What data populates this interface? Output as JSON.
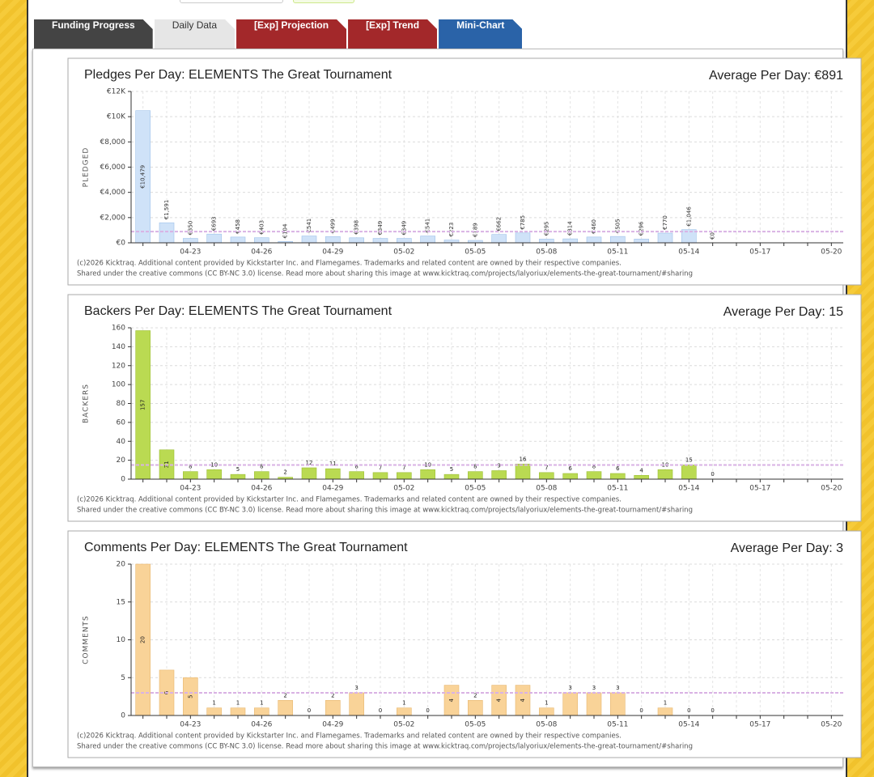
{
  "tabs": [
    "Funding Progress",
    "Daily Data",
    "[Exp] Projection",
    "[Exp] Trend",
    "Mini-Chart"
  ],
  "chart_data": [
    {
      "type": "bar",
      "title": "Pledges Per Day: ELEMENTS The Great Tournament",
      "average": {
        "value": 891,
        "label": "Average Per Day: €891"
      },
      "ylabel": "PLEDGED",
      "color": "#cfe2f8",
      "edge": "#9fc2ea",
      "categories": [
        null,
        null,
        "04-23",
        null,
        null,
        "04-26",
        null,
        null,
        "04-29",
        null,
        null,
        "05-02",
        null,
        null,
        "05-05",
        null,
        null,
        "05-08",
        null,
        null,
        "05-11",
        null,
        null,
        "05-14",
        null,
        null,
        "05-17",
        null,
        null,
        "05-20"
      ],
      "values": [
        10479,
        1591,
        350,
        693,
        458,
        403,
        104,
        541,
        499,
        398,
        349,
        349,
        541,
        223,
        189,
        662,
        785,
        295,
        314,
        460,
        505,
        296,
        770,
        1046,
        0,
        null,
        null,
        null,
        null,
        null
      ],
      "value_labels": [
        "€10,479",
        "€1,591",
        "€350",
        "€693",
        "€458",
        "€403",
        "€104",
        "€541",
        "€499",
        "€398",
        "€349",
        "€349",
        "€541",
        "€223",
        "€189",
        "€662",
        "€785",
        "€295",
        "€314",
        "€460",
        "€505",
        "€296",
        "€770",
        "€1,046",
        "€0",
        null,
        null,
        null,
        null,
        null
      ],
      "ylim": [
        0,
        12000
      ],
      "yticks": [
        {
          "value": 0,
          "label": "€0"
        },
        {
          "value": 2000,
          "label": "€2,000"
        },
        {
          "value": 4000,
          "label": "€4,000"
        },
        {
          "value": 6000,
          "label": "€6,000"
        },
        {
          "value": 8000,
          "label": "€8,000"
        },
        {
          "value": 10000,
          "label": "€10K"
        },
        {
          "value": 12000,
          "label": "€12K"
        }
      ],
      "footer": [
        "(c)2026 Kicktraq. Additional content provided by Kickstarter Inc. and Flamegames. Trademarks and related content are owned by their respective companies.",
        "Shared under the creative commons (CC BY-NC 3.0) license. Read more about sharing this image at www.kicktraq.com/projects/lalyoriux/elements-the-great-tournament/#sharing"
      ]
    },
    {
      "type": "bar",
      "title": "Backers Per Day: ELEMENTS The Great Tournament",
      "average": {
        "value": 15,
        "label": "Average Per Day: 15"
      },
      "ylabel": "BACKERS",
      "color": "#bada52",
      "edge": "#9cbf34",
      "categories": [
        null,
        null,
        "04-23",
        null,
        null,
        "04-26",
        null,
        null,
        "04-29",
        null,
        null,
        "05-02",
        null,
        null,
        "05-05",
        null,
        null,
        "05-08",
        null,
        null,
        "05-11",
        null,
        null,
        "05-14",
        null,
        null,
        "05-17",
        null,
        null,
        "05-20"
      ],
      "values": [
        157,
        31,
        8,
        10,
        5,
        8,
        2,
        12,
        11,
        8,
        7,
        7,
        10,
        5,
        8,
        9,
        16,
        7,
        6,
        8,
        6,
        4,
        10,
        15,
        0,
        null,
        null,
        null,
        null,
        null
      ],
      "ylim": [
        0,
        160
      ],
      "yticks": [
        0,
        20,
        40,
        60,
        80,
        100,
        120,
        140,
        160
      ],
      "footer": [
        "(c)2026 Kicktraq. Additional content provided by Kickstarter Inc. and Flamegames. Trademarks and related content are owned by their respective companies.",
        "Shared under the creative commons (CC BY-NC 3.0) license. Read more about sharing this image at www.kicktraq.com/projects/lalyoriux/elements-the-great-tournament/#sharing"
      ]
    },
    {
      "type": "bar",
      "title": "Comments Per Day: ELEMENTS The Great Tournament",
      "average": {
        "value": 3,
        "label": "Average Per Day: 3"
      },
      "ylabel": "COMMENTS",
      "color": "#f9d398",
      "edge": "#e8b870",
      "categories": [
        null,
        null,
        "04-23",
        null,
        null,
        "04-26",
        null,
        null,
        "04-29",
        null,
        null,
        "05-02",
        null,
        null,
        "05-05",
        null,
        null,
        "05-08",
        null,
        null,
        "05-11",
        null,
        null,
        "05-14",
        null,
        null,
        "05-17",
        null,
        null,
        "05-20"
      ],
      "values": [
        20,
        6,
        5,
        1,
        1,
        1,
        2,
        0,
        2,
        3,
        0,
        1,
        0,
        4,
        2,
        4,
        4,
        1,
        3,
        3,
        3,
        0,
        1,
        0,
        0,
        null,
        null,
        null,
        null,
        null
      ],
      "ylim": [
        0,
        20
      ],
      "yticks": [
        0,
        5,
        10,
        15,
        20
      ],
      "footer": [
        "(c)2026 Kicktraq. Additional content provided by Kickstarter Inc. and Flamegames. Trademarks and related content are owned by their respective companies.",
        "Shared under the creative commons (CC BY-NC 3.0) license. Read more about sharing this image at www.kicktraq.com/projects/lalyoriux/elements-the-great-tournament/#sharing"
      ]
    }
  ]
}
